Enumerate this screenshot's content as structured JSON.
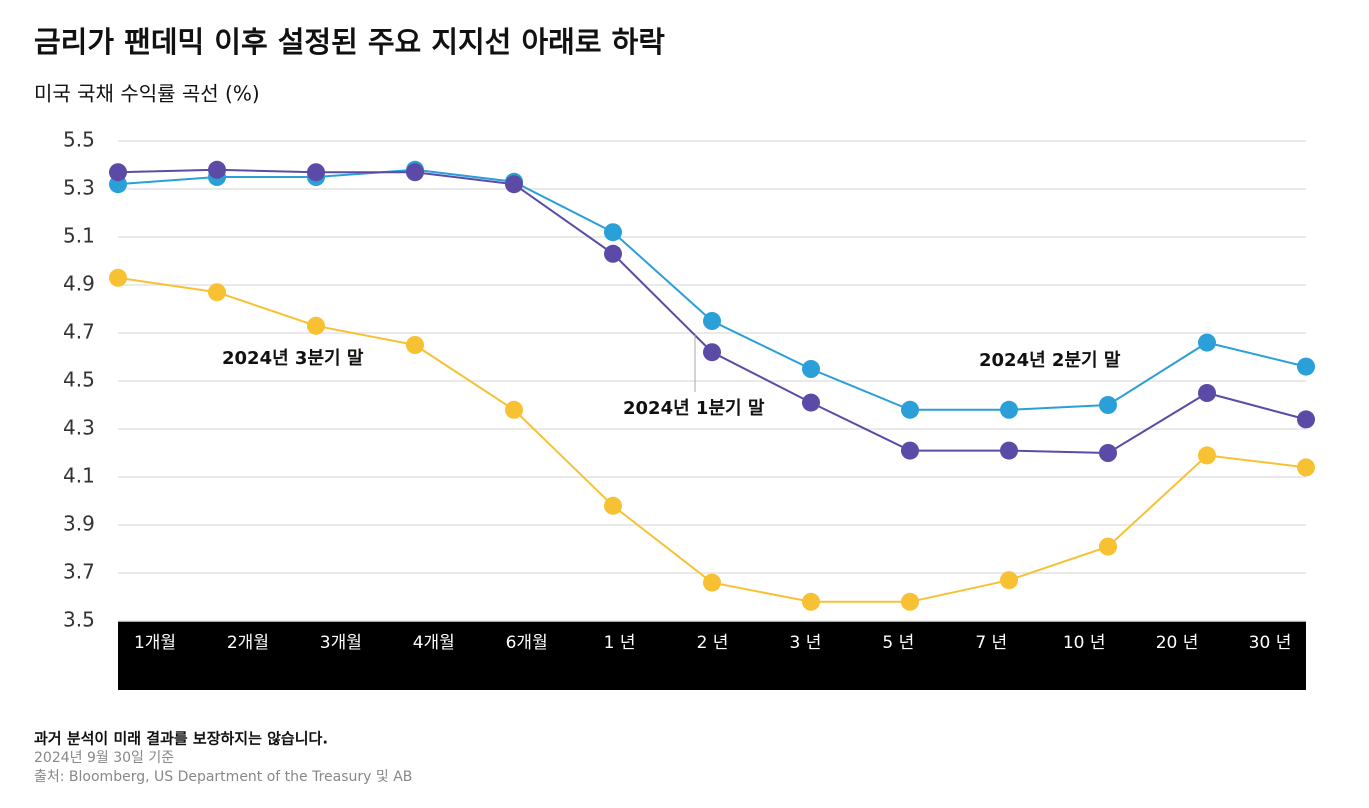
{
  "chart_data": {
    "type": "line",
    "title": "금리가 팬데믹 이후 설정된 주요 지지선 아래로 하락",
    "subtitle": "미국 국채 수익률 곡선 (%)",
    "categories": [
      "1개월",
      "2개월",
      "3개월",
      "4개월",
      "6개월",
      "1 년",
      "2 년",
      "3 년",
      "5 년",
      "7 년",
      "10 년",
      "20 년",
      "30 년"
    ],
    "series": [
      {
        "name": "2024년 2분기 말",
        "color": "#2a9fd8",
        "values": [
          5.32,
          5.35,
          5.35,
          5.38,
          5.33,
          5.12,
          4.75,
          4.55,
          4.38,
          4.38,
          4.4,
          4.66,
          4.56
        ]
      },
      {
        "name": "2024년 1분기 말",
        "color": "#5b4ba6",
        "values": [
          5.37,
          5.38,
          5.37,
          5.37,
          5.32,
          5.03,
          4.62,
          4.41,
          4.21,
          4.21,
          4.2,
          4.45,
          4.34
        ]
      },
      {
        "name": "2024년 3분기 말",
        "color": "#f7c133",
        "values": [
          4.93,
          4.87,
          4.73,
          4.65,
          4.38,
          3.98,
          3.66,
          3.58,
          3.58,
          3.67,
          3.81,
          4.19,
          4.14
        ]
      }
    ],
    "ylim": [
      3.5,
      5.5
    ],
    "yticks": [
      3.5,
      3.7,
      3.9,
      4.1,
      4.3,
      4.5,
      4.7,
      4.9,
      5.1,
      5.3,
      5.5
    ],
    "grid": true,
    "footnote": "과거 분석이 미래 결과를 보장하지는 않습니다.",
    "date_note": "2024년 9월 30일 기준",
    "source": "출처: Bloomberg, US Department of the Treasury 및 AB"
  }
}
